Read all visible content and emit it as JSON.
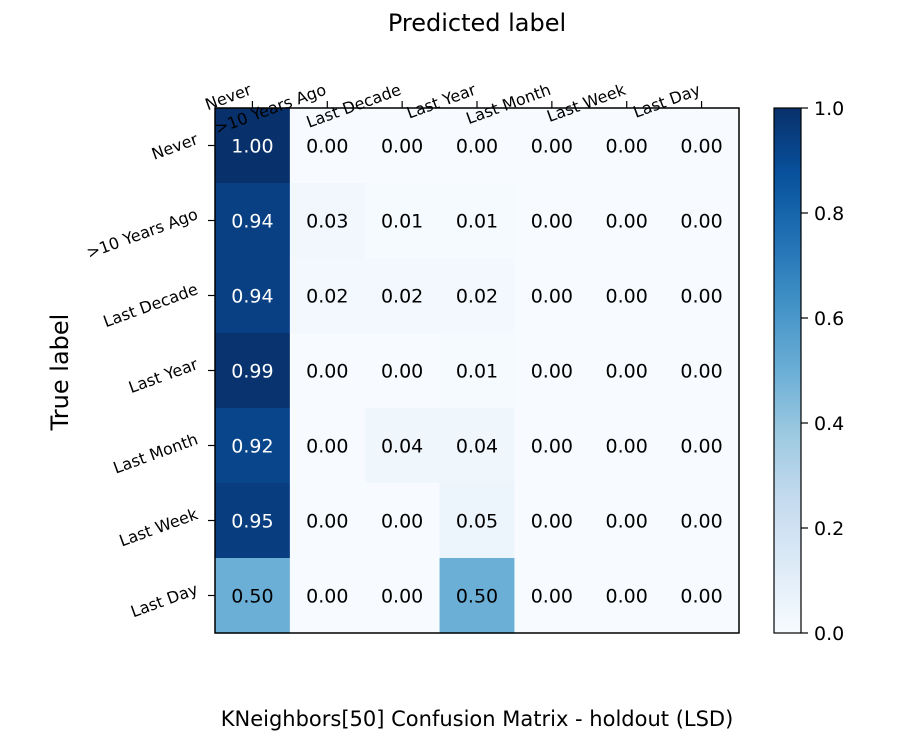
{
  "chart_data": {
    "type": "heatmap",
    "title": "KNeighbors[50] Confusion Matrix - holdout (LSD)",
    "xlabel": "Predicted label",
    "ylabel": "True label",
    "x_categories": [
      "Never",
      ">10 Years Ago",
      "Last Decade",
      "Last Year",
      "Last Month",
      "Last Week",
      "Last Day"
    ],
    "y_categories": [
      "Never",
      ">10 Years Ago",
      "Last Decade",
      "Last Year",
      "Last Month",
      "Last Week",
      "Last Day"
    ],
    "values": [
      [
        1.0,
        0.0,
        0.0,
        0.0,
        0.0,
        0.0,
        0.0
      ],
      [
        0.94,
        0.03,
        0.01,
        0.01,
        0.0,
        0.0,
        0.0
      ],
      [
        0.94,
        0.02,
        0.02,
        0.02,
        0.0,
        0.0,
        0.0
      ],
      [
        0.99,
        0.0,
        0.0,
        0.01,
        0.0,
        0.0,
        0.0
      ],
      [
        0.92,
        0.0,
        0.04,
        0.04,
        0.0,
        0.0,
        0.0
      ],
      [
        0.95,
        0.0,
        0.0,
        0.05,
        0.0,
        0.0,
        0.0
      ],
      [
        0.5,
        0.0,
        0.0,
        0.5,
        0.0,
        0.0,
        0.0
      ]
    ],
    "value_range": [
      0,
      1
    ],
    "colormap": "Blues",
    "colorbar_ticks": [
      "0.0",
      "0.2",
      "0.4",
      "0.6",
      "0.8",
      "1.0"
    ],
    "x_ticks_position": "top",
    "legend": "colorbar-right",
    "grid": false
  }
}
